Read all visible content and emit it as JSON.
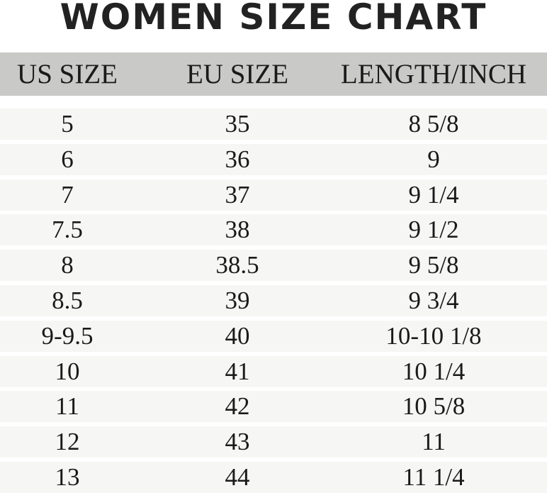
{
  "title": "WOMEN SIZE CHART",
  "chart_data": {
    "type": "table",
    "title": "WOMEN SIZE CHART",
    "columns": [
      "US SIZE",
      "EU SIZE",
      "LENGTH/INCH"
    ],
    "rows": [
      [
        "5",
        "35",
        "8 5/8"
      ],
      [
        "6",
        "36",
        "9"
      ],
      [
        "7",
        "37",
        "9 1/4"
      ],
      [
        "7.5",
        "38",
        "9 1/2"
      ],
      [
        "8",
        "38.5",
        "9 5/8"
      ],
      [
        "8.5",
        "39",
        "9 3/4"
      ],
      [
        "9-9.5",
        "40",
        "10-10 1/8"
      ],
      [
        "10",
        "41",
        "10 1/4"
      ],
      [
        "11",
        "42",
        "10 5/8"
      ],
      [
        "12",
        "43",
        "11"
      ],
      [
        "13",
        "44",
        "11 1/4"
      ]
    ]
  },
  "colors": {
    "header_bg": "#c9c9c8",
    "row_bg": "#f6f6f4",
    "text": "#1a1a1a"
  }
}
